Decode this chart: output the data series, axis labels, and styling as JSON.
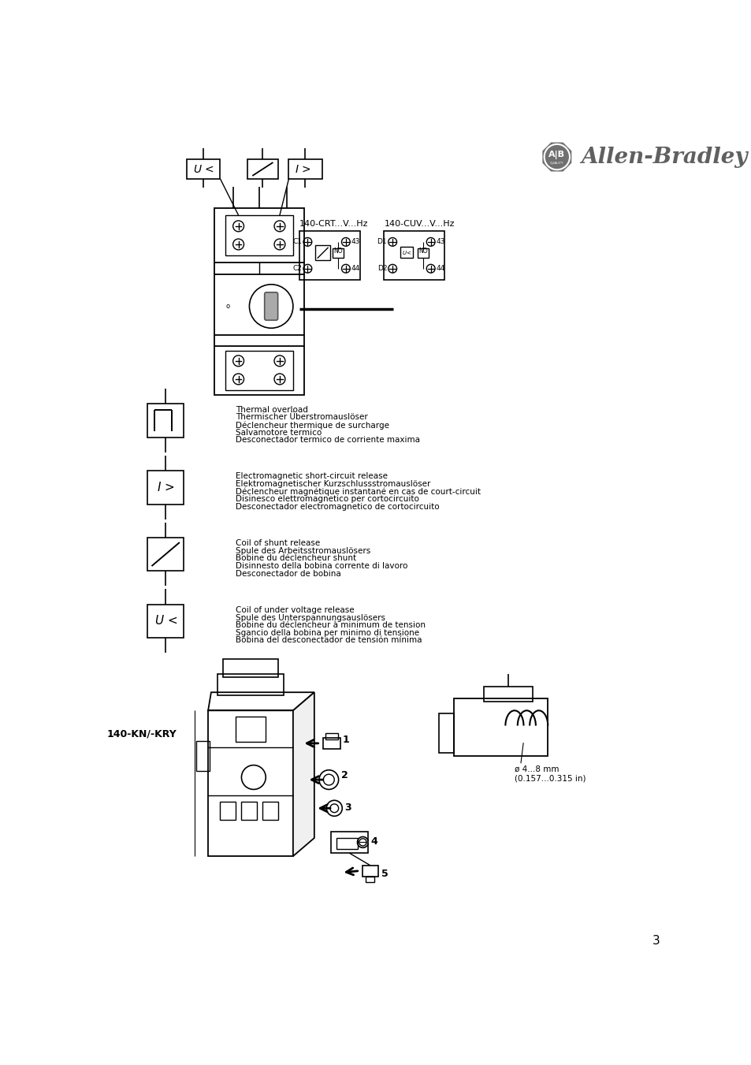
{
  "page_bg": "#ffffff",
  "page_number": "3",
  "brand_name": "Allen-Bradley",
  "label_140kn": "140-KN/-KRY",
  "crt_label": "140-CRT...V...Hz",
  "cuv_label": "140-CUV...V...Hz",
  "symbol_texts": [
    {
      "lines": [
        "Thermal overload",
        "Thermischer Überstromauslöser",
        "Déclencheur thermique de surcharge",
        "Salvamotore termico",
        "Desconectador termico de corriente maxima"
      ],
      "symbol": "thermal"
    },
    {
      "lines": [
        "Electromagnetic short-circuit release",
        "Elektromagnetischer Kurzschlussstromauslöser",
        "Déclencheur magnétique instantané en cas de court-circuit",
        "Disinesco elettromagnetico per cortocircuito",
        "Desconectador electromagnetico de cortocircuito"
      ],
      "symbol": "I_gt"
    },
    {
      "lines": [
        "Coil of shunt release",
        "Spule des Arbeitsstromauslösers",
        "Bobine du déclencheur shunt",
        "Disinnesto della bobina corrente di lavoro",
        "Desconectador de bobina"
      ],
      "symbol": "shunt"
    },
    {
      "lines": [
        "Coil of under voltage release",
        "Spule des Unterspannungsauslösers",
        "Bobine du déclencheur à minimum de tension",
        "Sgancio della bobina per minimo di tensione",
        "Bobina del desconectador de tensión mínima"
      ],
      "symbol": "U_lt"
    }
  ],
  "bottom_annotation": "ø 4...8 mm\n(0.157...0.315 in)",
  "step_labels": [
    "1",
    "2",
    "3",
    "4",
    "5"
  ]
}
